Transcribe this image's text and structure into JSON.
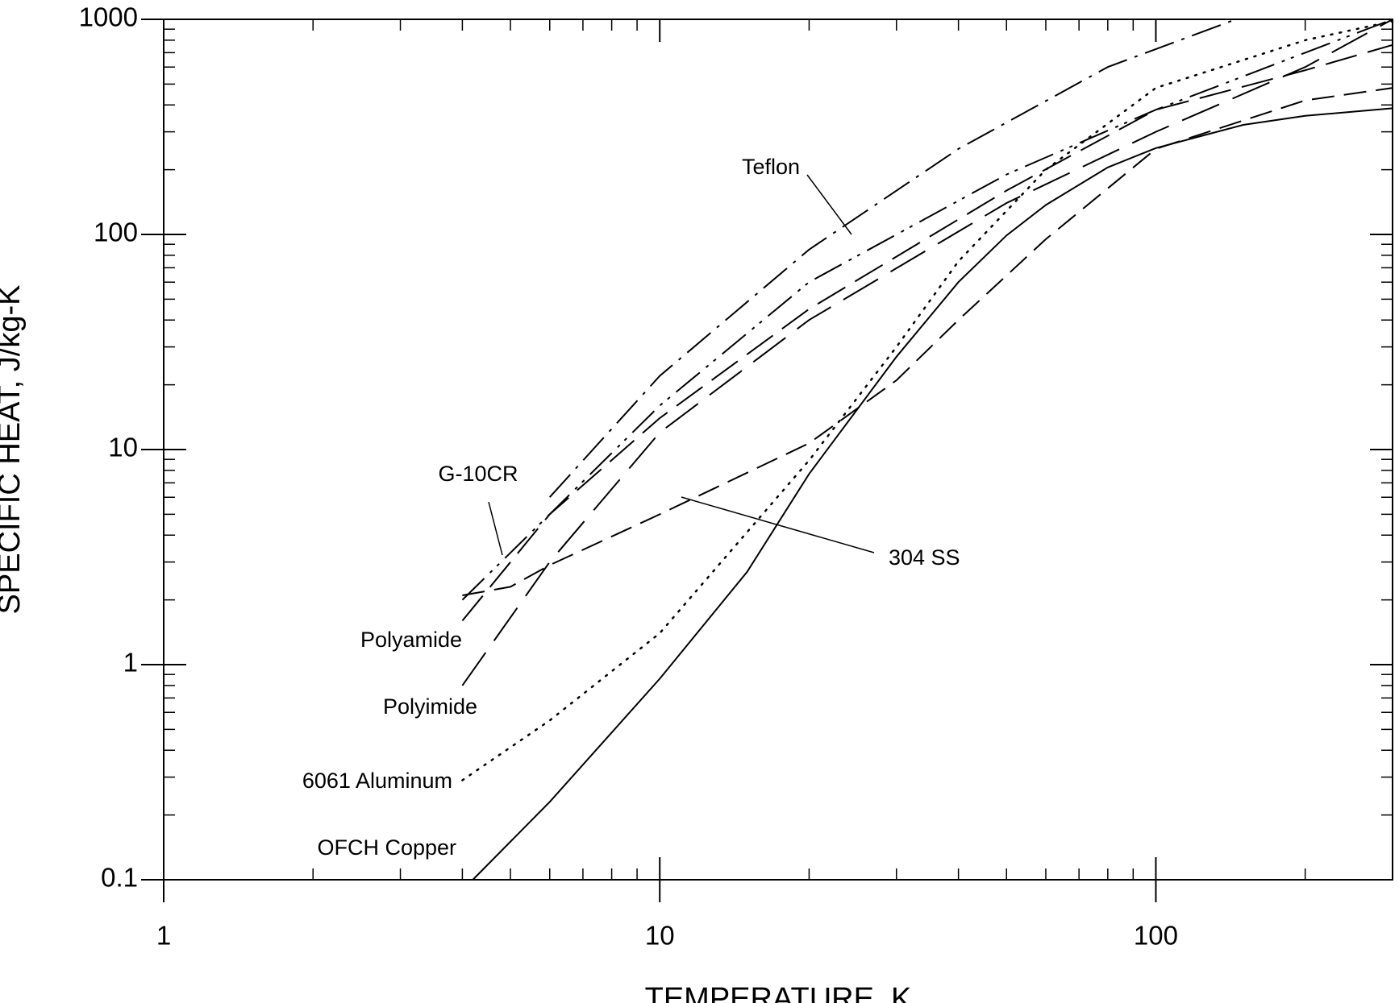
{
  "chart_data": {
    "type": "line",
    "xlabel": "TEMPERATURE, K",
    "ylabel": "SPECIFIC HEAT, J/kg-K",
    "xscale": "log",
    "yscale": "log",
    "xlim": [
      1,
      300
    ],
    "ylim": [
      0.1,
      1000
    ],
    "xticks": [
      1,
      10,
      100
    ],
    "yticks": [
      0.1,
      1,
      10,
      100,
      1000
    ],
    "series": [
      {
        "name": "OFCH Copper",
        "color": "#000000",
        "dash": "solid",
        "x": [
          4.2,
          6,
          10,
          15,
          20,
          30,
          40,
          50,
          60,
          80,
          100,
          150,
          200,
          300
        ],
        "values": [
          0.1,
          0.23,
          0.86,
          2.7,
          7.7,
          27,
          60,
          99,
          137,
          205,
          252,
          323,
          356,
          386
        ]
      },
      {
        "name": "6061 Aluminum",
        "color": "#000000",
        "dash": "dotted",
        "x": [
          4,
          6,
          10,
          20,
          30,
          40,
          60,
          100,
          200,
          300
        ],
        "values": [
          0.29,
          0.55,
          1.4,
          8.9,
          30,
          75,
          200,
          480,
          800,
          980
        ]
      },
      {
        "name": "304 SS",
        "color": "#000000",
        "dash": "dash",
        "x": [
          4,
          5,
          6,
          10,
          20,
          30,
          40,
          60,
          100,
          200,
          300
        ],
        "values": [
          2.1,
          2.3,
          2.9,
          5.0,
          10.7,
          21,
          40,
          95,
          250,
          420,
          480
        ]
      },
      {
        "name": "G-10CR",
        "color": "#000000",
        "dash": "dashdotdot",
        "x": [
          4,
          6,
          10,
          20,
          50,
          100,
          200,
          300
        ],
        "values": [
          2.0,
          5,
          16,
          60,
          190,
          380,
          700,
          1000
        ]
      },
      {
        "name": "Polyamide",
        "color": "#000000",
        "dash": "longdash",
        "x": [
          4,
          6,
          10,
          20,
          50,
          100,
          200,
          300
        ],
        "values": [
          1.6,
          5,
          14,
          45,
          160,
          380,
          580,
          760
        ]
      },
      {
        "name": "Polyimide",
        "color": "#000000",
        "dash": "longdash2",
        "x": [
          4,
          6,
          10,
          20,
          50,
          100,
          200,
          300
        ],
        "values": [
          0.8,
          3,
          12,
          40,
          140,
          300,
          600,
          1000
        ]
      },
      {
        "name": "Teflon",
        "color": "#000000",
        "dash": "dashdot",
        "x": [
          6,
          10,
          20,
          40,
          80,
          145
        ],
        "values": [
          6,
          22,
          85,
          250,
          600,
          1000
        ]
      }
    ]
  }
}
